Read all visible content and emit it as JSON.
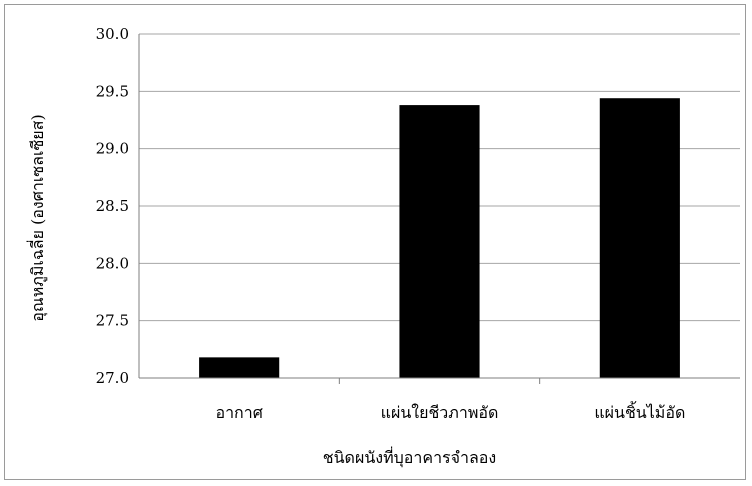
{
  "chart_data": {
    "type": "bar",
    "title": "",
    "xlabel": "ชนิดผนังที่บุอาคารจำลอง",
    "ylabel": "อุณหภูมิเฉลี่ย (องศาเซลเซียส)",
    "categories": [
      "อากาศ",
      "แผ่นใยชีวภาพอัด",
      "แผ่นชิ้นไม้อัด"
    ],
    "values": [
      27.18,
      29.38,
      29.44
    ],
    "ylim": [
      27.0,
      30.0
    ],
    "yticks": [
      "27.0",
      "27.5",
      "28.0",
      "28.5",
      "29.0",
      "29.5",
      "30.0"
    ],
    "ytick_values": [
      27.0,
      27.5,
      28.0,
      28.5,
      29.0,
      29.5,
      30.0
    ],
    "grid": true,
    "legend": "none",
    "bar_color": "#000000",
    "gridline_color": "#a6a6a6"
  }
}
